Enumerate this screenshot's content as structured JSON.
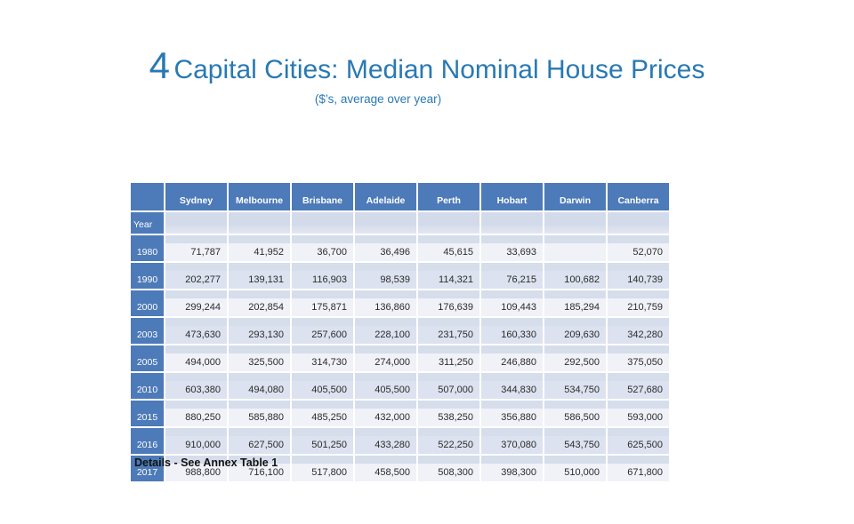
{
  "slide": {
    "title_number": "4",
    "title_main": "Capital Cities: Median Nominal House Prices",
    "subtitle": "($’s, average over year)",
    "footer_note": "Details - See Annex Table 1"
  },
  "table": {
    "row_group_label": "Year",
    "columns": [
      "Sydney",
      "Melbourne",
      "Brisbane",
      "Adelaide",
      "Perth",
      "Hobart",
      "Darwin",
      "Canberra"
    ],
    "rows": [
      {
        "year": "1980",
        "values": [
          "71,787",
          "41,952",
          "36,700",
          "36,496",
          "45,615",
          "33,693",
          "",
          "52,070"
        ]
      },
      {
        "year": "1990",
        "values": [
          "202,277",
          "139,131",
          "116,903",
          "98,539",
          "114,321",
          "76,215",
          "100,682",
          "140,739"
        ]
      },
      {
        "year": "2000",
        "values": [
          "299,244",
          "202,854",
          "175,871",
          "136,860",
          "176,639",
          "109,443",
          "185,294",
          "210,759"
        ]
      },
      {
        "year": "2003",
        "values": [
          "473,630",
          "293,130",
          "257,600",
          "228,100",
          "231,750",
          "160,330",
          "209,630",
          "342,280"
        ]
      },
      {
        "year": "2005",
        "values": [
          "494,000",
          "325,500",
          "314,730",
          "274,000",
          "311,250",
          "246,880",
          "292,500",
          "375,050"
        ]
      },
      {
        "year": "2010",
        "values": [
          "603,380",
          "494,080",
          "405,500",
          "405,500",
          "507,000",
          "344,830",
          "534,750",
          "527,680"
        ]
      },
      {
        "year": "2015",
        "values": [
          "880,250",
          "585,880",
          "485,250",
          "432,000",
          "538,250",
          "356,880",
          "586,500",
          "593,000"
        ]
      },
      {
        "year": "2016",
        "values": [
          "910,000",
          "627,500",
          "501,250",
          "433,280",
          "522,250",
          "370,080",
          "543,750",
          "625,500"
        ]
      },
      {
        "year": "2017",
        "values": [
          "988,800",
          "716,100",
          "517,800",
          "458,500",
          "508,300",
          "398,300",
          "510,000",
          "671,800"
        ]
      }
    ]
  },
  "colors": {
    "title_blue": "#2979b3",
    "header_blue": "#4d7ab8",
    "band_light": "#f0f2f8",
    "band_dark": "#dce2ef",
    "row_strip": "#d6ddeb"
  },
  "chart_data": {
    "type": "table",
    "title": "4 Capital Cities: Median Nominal House Prices ($'s, average over year)",
    "categories": [
      "1980",
      "1990",
      "2000",
      "2003",
      "2005",
      "2010",
      "2015",
      "2016",
      "2017"
    ],
    "series": [
      {
        "name": "Sydney",
        "values": [
          71787,
          202277,
          299244,
          473630,
          494000,
          603380,
          880250,
          910000,
          988800
        ]
      },
      {
        "name": "Melbourne",
        "values": [
          41952,
          139131,
          202854,
          293130,
          325500,
          494080,
          585880,
          627500,
          716100
        ]
      },
      {
        "name": "Brisbane",
        "values": [
          36700,
          116903,
          175871,
          257600,
          314730,
          405500,
          485250,
          501250,
          517800
        ]
      },
      {
        "name": "Adelaide",
        "values": [
          36496,
          98539,
          136860,
          228100,
          274000,
          405500,
          432000,
          433280,
          458500
        ]
      },
      {
        "name": "Perth",
        "values": [
          45615,
          114321,
          176639,
          231750,
          311250,
          507000,
          538250,
          522250,
          508300
        ]
      },
      {
        "name": "Hobart",
        "values": [
          33693,
          76215,
          109443,
          160330,
          246880,
          344830,
          356880,
          370080,
          398300
        ]
      },
      {
        "name": "Darwin",
        "values": [
          null,
          100682,
          185294,
          209630,
          292500,
          534750,
          586500,
          543750,
          510000
        ]
      },
      {
        "name": "Canberra",
        "values": [
          52070,
          140739,
          210759,
          342280,
          375050,
          527680,
          593000,
          625500,
          671800
        ]
      }
    ]
  }
}
